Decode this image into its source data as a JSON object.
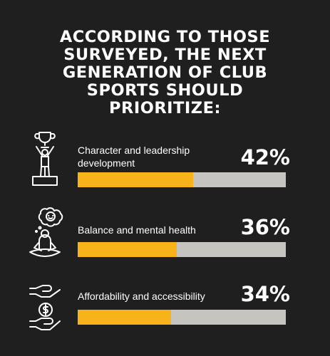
{
  "headline": {
    "lines": [
      "ACCORDING TO THOSE",
      "SURVEYED, THE NEXT",
      "GENERATION OF CLUB",
      "SPORTS SHOULD",
      "PRIORITIZE:"
    ]
  },
  "colors": {
    "background": "#1f1f1f",
    "bar_fill": "#f8b31b",
    "bar_track": "#c6c4c1",
    "text": "#ffffff"
  },
  "chart_data": {
    "type": "bar",
    "orientation": "horizontal",
    "title": "ACCORDING TO THOSE SURVEYED, THE NEXT GENERATION OF CLUB SPORTS SHOULD PRIORITIZE:",
    "ylim": [
      0,
      100
    ],
    "unit": "%",
    "items": [
      {
        "label_lines": [
          "Character and leadership",
          "development"
        ],
        "value": 42,
        "value_label": "42%",
        "icon": "trophy-winner-podium-icon"
      },
      {
        "label_lines": [
          "Balance and mental health"
        ],
        "value": 36,
        "value_label": "36%",
        "icon": "meditating-person-icon"
      },
      {
        "label_lines": [
          "Affordability and accessibility"
        ],
        "value": 34,
        "value_label": "34%",
        "icon": "hand-holding-dollar-icon"
      }
    ]
  }
}
